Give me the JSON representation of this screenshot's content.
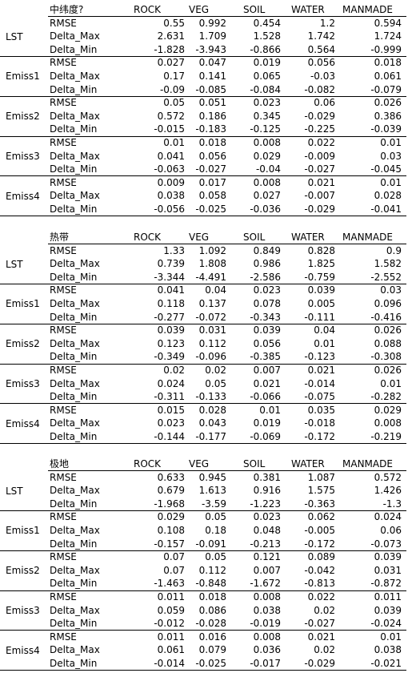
{
  "columns": [
    "ROCK",
    "VEG",
    "SOIL",
    "WATER",
    "MANMADE"
  ],
  "metrics": [
    "RMSE",
    "Delta_Max",
    "Delta_Min"
  ],
  "sections": [
    {
      "title": "中纬度?",
      "groups": [
        {
          "label": "LST",
          "rows": [
            [
              "0.55",
              "0.992",
              "0.454",
              "1.2",
              "0.594"
            ],
            [
              "2.631",
              "1.709",
              "1.528",
              "1.742",
              "1.724"
            ],
            [
              "-1.828",
              "-3.943",
              "-0.866",
              "0.564",
              "-0.999"
            ]
          ]
        },
        {
          "label": "Emiss1",
          "rows": [
            [
              "0.027",
              "0.047",
              "0.019",
              "0.056",
              "0.018"
            ],
            [
              "0.17",
              "0.141",
              "0.065",
              "-0.03",
              "0.061"
            ],
            [
              "-0.09",
              "-0.085",
              "-0.084",
              "-0.082",
              "-0.079"
            ]
          ]
        },
        {
          "label": "Emiss2",
          "rows": [
            [
              "0.05",
              "0.051",
              "0.023",
              "0.06",
              "0.026"
            ],
            [
              "0.572",
              "0.186",
              "0.345",
              "-0.029",
              "0.386"
            ],
            [
              "-0.015",
              "-0.183",
              "-0.125",
              "-0.225",
              "-0.039"
            ]
          ]
        },
        {
          "label": "Emiss3",
          "rows": [
            [
              "0.01",
              "0.018",
              "0.008",
              "0.022",
              "0.01"
            ],
            [
              "0.041",
              "0.056",
              "0.029",
              "-0.009",
              "0.03"
            ],
            [
              "-0.063",
              "-0.027",
              "-0.04",
              "-0.027",
              "-0.045"
            ]
          ]
        },
        {
          "label": "Emiss4",
          "rows": [
            [
              "0.009",
              "0.017",
              "0.008",
              "0.021",
              "0.01"
            ],
            [
              "0.038",
              "0.058",
              "0.027",
              "-0.007",
              "0.028"
            ],
            [
              "-0.056",
              "-0.025",
              "-0.036",
              "-0.029",
              "-0.041"
            ]
          ]
        }
      ]
    },
    {
      "title": "热带",
      "groups": [
        {
          "label": "LST",
          "rows": [
            [
              "1.33",
              "1.092",
              "0.849",
              "0.828",
              "0.9"
            ],
            [
              "0.739",
              "1.808",
              "0.986",
              "1.825",
              "1.582"
            ],
            [
              "-3.344",
              "-4.491",
              "-2.586",
              "-0.759",
              "-2.552"
            ]
          ]
        },
        {
          "label": "Emiss1",
          "rows": [
            [
              "0.041",
              "0.04",
              "0.023",
              "0.039",
              "0.03"
            ],
            [
              "0.118",
              "0.137",
              "0.078",
              "0.005",
              "0.096"
            ],
            [
              "-0.277",
              "-0.072",
              "-0.343",
              "-0.111",
              "-0.416"
            ]
          ]
        },
        {
          "label": "Emiss2",
          "rows": [
            [
              "0.039",
              "0.031",
              "0.039",
              "0.04",
              "0.026"
            ],
            [
              "0.123",
              "0.112",
              "0.056",
              "0.01",
              "0.088"
            ],
            [
              "-0.349",
              "-0.096",
              "-0.385",
              "-0.123",
              "-0.308"
            ]
          ]
        },
        {
          "label": "Emiss3",
          "rows": [
            [
              "0.02",
              "0.02",
              "0.007",
              "0.021",
              "0.026"
            ],
            [
              "0.024",
              "0.05",
              "0.021",
              "-0.014",
              "0.01"
            ],
            [
              "-0.311",
              "-0.133",
              "-0.066",
              "-0.075",
              "-0.282"
            ]
          ]
        },
        {
          "label": "Emiss4",
          "rows": [
            [
              "0.015",
              "0.028",
              "0.01",
              "0.035",
              "0.029"
            ],
            [
              "0.023",
              "0.043",
              "0.019",
              "-0.018",
              "0.008"
            ],
            [
              "-0.144",
              "-0.177",
              "-0.069",
              "-0.172",
              "-0.219"
            ]
          ]
        }
      ]
    },
    {
      "title": "极地",
      "groups": [
        {
          "label": "LST",
          "rows": [
            [
              "0.633",
              "0.945",
              "0.381",
              "1.087",
              "0.572"
            ],
            [
              "0.679",
              "1.613",
              "0.916",
              "1.575",
              "1.426"
            ],
            [
              "-1.968",
              "-3.59",
              "-1.223",
              "-0.363",
              "-1.3"
            ]
          ]
        },
        {
          "label": "Emiss1",
          "rows": [
            [
              "0.029",
              "0.05",
              "0.023",
              "0.062",
              "0.024"
            ],
            [
              "0.108",
              "0.18",
              "0.048",
              "-0.005",
              "0.06"
            ],
            [
              "-0.157",
              "-0.091",
              "-0.213",
              "-0.172",
              "-0.073"
            ]
          ]
        },
        {
          "label": "Emiss2",
          "rows": [
            [
              "0.07",
              "0.05",
              "0.121",
              "0.089",
              "0.039"
            ],
            [
              "0.07",
              "0.112",
              "0.007",
              "-0.042",
              "0.031"
            ],
            [
              "-1.463",
              "-0.848",
              "-1.672",
              "-0.813",
              "-0.872"
            ]
          ]
        },
        {
          "label": "Emiss3",
          "rows": [
            [
              "0.011",
              "0.018",
              "0.008",
              "0.022",
              "0.011"
            ],
            [
              "0.059",
              "0.086",
              "0.038",
              "0.02",
              "0.039"
            ],
            [
              "-0.012",
              "-0.028",
              "-0.019",
              "-0.027",
              "-0.024"
            ]
          ]
        },
        {
          "label": "Emiss4",
          "rows": [
            [
              "0.011",
              "0.016",
              "0.008",
              "0.021",
              "0.01"
            ],
            [
              "0.061",
              "0.079",
              "0.036",
              "0.02",
              "0.038"
            ],
            [
              "-0.014",
              "-0.025",
              "-0.017",
              "-0.029",
              "-0.021"
            ]
          ]
        }
      ]
    }
  ]
}
